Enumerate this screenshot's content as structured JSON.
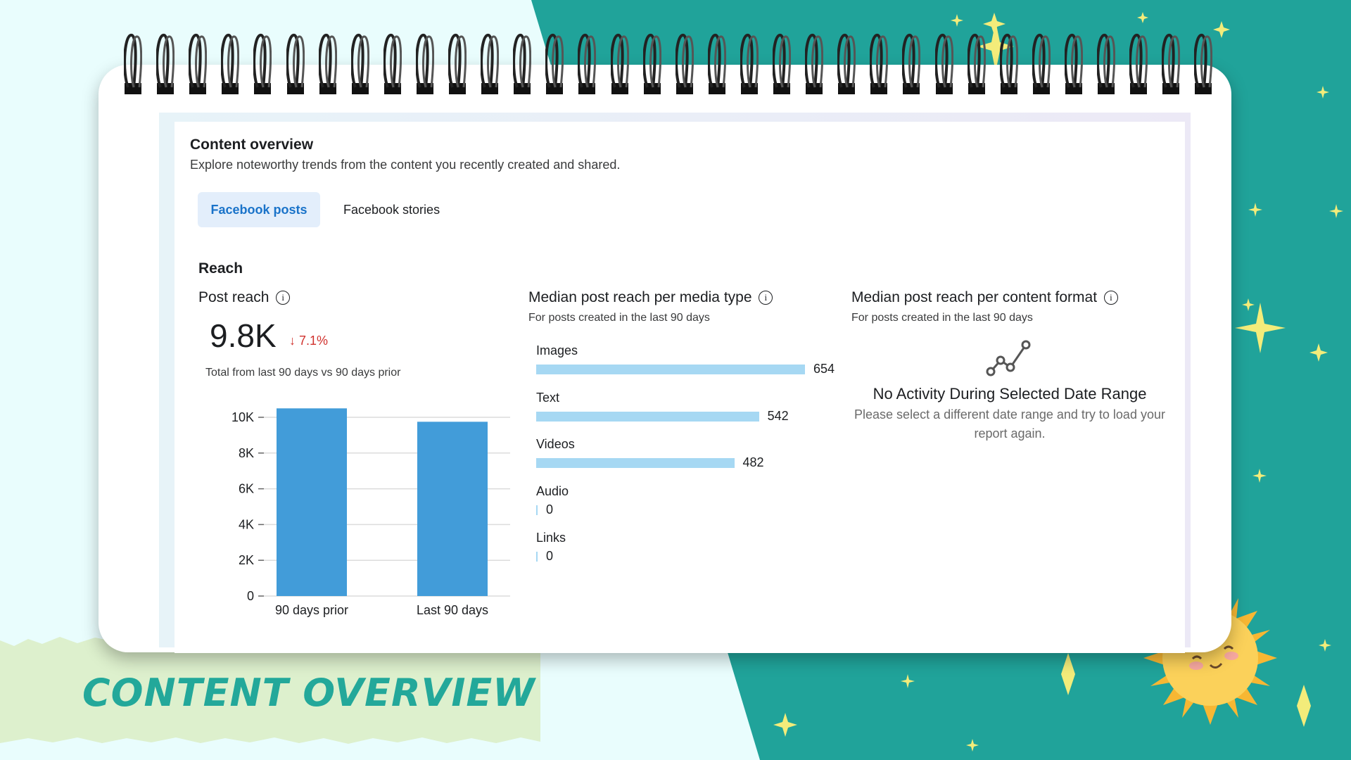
{
  "colors": {
    "teal": "#20a39a",
    "mint": "#e9fdfd",
    "paper": "#ddf0cd",
    "bar": "#429cd9",
    "media_bar": "#a6d8f3",
    "link_blue": "#1a73c9",
    "decrease_red": "#d0312d"
  },
  "header": {
    "title": "Content overview",
    "subtitle": "Explore noteworthy trends from the content you recently created and shared."
  },
  "tabs": [
    {
      "label": "Facebook posts",
      "active": true
    },
    {
      "label": "Facebook stories",
      "active": false
    }
  ],
  "reach": {
    "section_title": "Reach",
    "post_reach": {
      "title": "Post reach",
      "value": "9.8K",
      "delta": "↓ 7.1%",
      "caption": "Total from last 90 days vs 90 days prior",
      "info_icon": "info-icon"
    },
    "media_type": {
      "title": "Median post reach per media type",
      "subtitle": "For posts created in the last 90 days",
      "items": [
        {
          "label": "Images",
          "value": "654"
        },
        {
          "label": "Text",
          "value": "542"
        },
        {
          "label": "Videos",
          "value": "482"
        },
        {
          "label": "Audio",
          "value": "0"
        },
        {
          "label": "Links",
          "value": "0"
        }
      ]
    },
    "content_format": {
      "title": "Median post reach per content format",
      "subtitle": "For posts created in the last 90 days",
      "empty_icon": "line-chart-icon",
      "empty_title": "No Activity During Selected Date Range",
      "empty_message": "Please select a different date range and try to load your report again."
    }
  },
  "chart_data": [
    {
      "type": "bar",
      "categories": [
        "90 days prior",
        "Last 90 days"
      ],
      "values": [
        10500,
        9750
      ],
      "ylim": [
        0,
        10000
      ],
      "yticks": [
        "0",
        "2K",
        "4K",
        "6K",
        "8K",
        "10K"
      ],
      "grid": true,
      "xlabel": "",
      "ylabel": ""
    },
    {
      "type": "bar",
      "orientation": "horizontal",
      "categories": [
        "Images",
        "Text",
        "Videos",
        "Audio",
        "Links"
      ],
      "values": [
        654,
        542,
        482,
        0,
        0
      ]
    }
  ],
  "banner": {
    "text": "CONTENT OVERVIEW"
  },
  "decor": {
    "sun_icon": "smiling-sun-icon",
    "sparkle_icon": "sparkle-icon",
    "spiral_icon": "spiral-binding-icon"
  }
}
